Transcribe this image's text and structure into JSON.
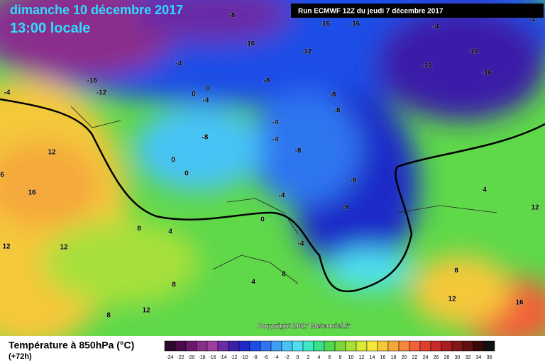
{
  "header": {
    "valid_date": "dimanche 10 décembre 2017",
    "valid_time": "13:00 locale",
    "run": "Run ECMWF 12Z du jeudi 7 décembre 2017"
  },
  "map": {
    "labels": [
      "-8",
      "-16",
      "-16",
      "-4",
      "-4",
      "-16",
      "-12",
      "-12",
      "-12",
      "-16",
      "-4",
      "-16",
      "-12",
      "-4",
      "-8",
      "0",
      "0",
      "-4",
      "-8",
      "-8",
      "-4",
      "-4",
      "-8",
      "-8",
      "12",
      "0",
      "0",
      "6",
      "-8",
      "16",
      "-4",
      "-8",
      "4",
      "12",
      "0",
      "8",
      "4",
      "-4",
      "12",
      "12",
      "8",
      "8",
      "4",
      "8",
      "12",
      "8",
      "12",
      "16"
    ]
  },
  "footer": {
    "copyright": "Copyright 2017 Meteociel.fr",
    "title": "Température à 850hPa (°C)",
    "lead": "(+72h)",
    "scale": {
      "values": [
        -24,
        -22,
        -20,
        -18,
        -16,
        -14,
        -12,
        -10,
        -8,
        -6,
        -4,
        -2,
        0,
        2,
        4,
        6,
        8,
        10,
        12,
        14,
        16,
        18,
        20,
        22,
        24,
        26,
        28,
        30,
        32,
        34,
        36
      ],
      "colors": [
        "#2d0a2d",
        "#4b0a4b",
        "#6b1a6b",
        "#8b2d8b",
        "#a03ca0",
        "#6a2aa6",
        "#3b1fa8",
        "#1e2ac8",
        "#1e4de6",
        "#2f74f0",
        "#3d9ef5",
        "#47c3f5",
        "#4fe0f0",
        "#3fe8c4",
        "#38e08a",
        "#4fd84f",
        "#7ad83c",
        "#a8e03a",
        "#d8e83a",
        "#f5e83a",
        "#f5c83a",
        "#f5a83a",
        "#f5883a",
        "#f0603a",
        "#e0402a",
        "#c82a2a",
        "#a81e1e",
        "#801818",
        "#601010",
        "#380808",
        "#101010"
      ]
    }
  }
}
